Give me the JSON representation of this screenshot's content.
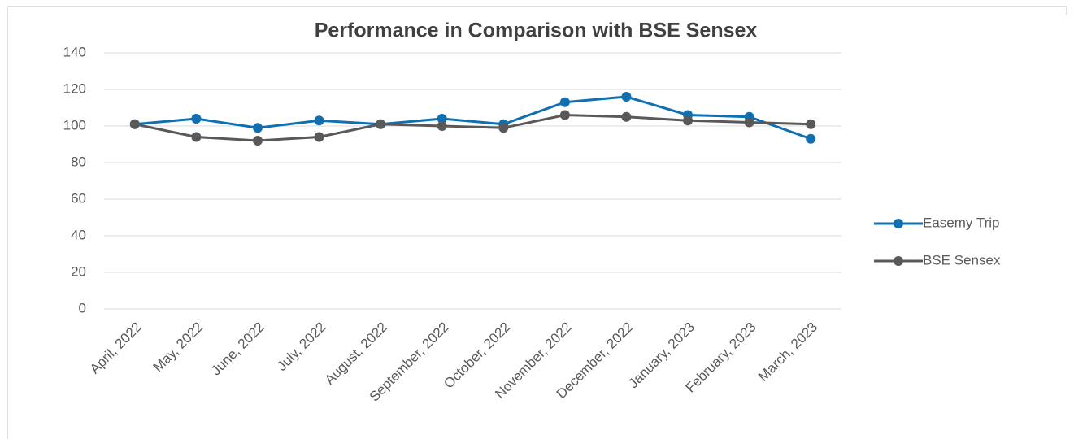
{
  "chart_data": {
    "type": "line",
    "title": "Performance in Comparison with BSE Sensex",
    "categories": [
      "April, 2022",
      "May, 2022",
      "June, 2022",
      "July, 2022",
      "August, 2022",
      "September, 2022",
      "October, 2022",
      "November, 2022",
      "December, 2022",
      "January, 2023",
      "February, 2023",
      "March, 2023"
    ],
    "series": [
      {
        "name": "Easemy Trip",
        "color": "#0e70b3",
        "values": [
          101,
          104,
          99,
          103,
          101,
          104,
          101,
          113,
          116,
          106,
          105,
          93
        ]
      },
      {
        "name": "BSE Sensex",
        "color": "#595959",
        "values": [
          101,
          94,
          92,
          94,
          101,
          100,
          99,
          106,
          105,
          103,
          102,
          101
        ]
      }
    ],
    "ylim": [
      0,
      140
    ],
    "yticks": [
      0,
      20,
      40,
      60,
      80,
      100,
      120,
      140
    ],
    "grid": true,
    "legend": "right"
  }
}
